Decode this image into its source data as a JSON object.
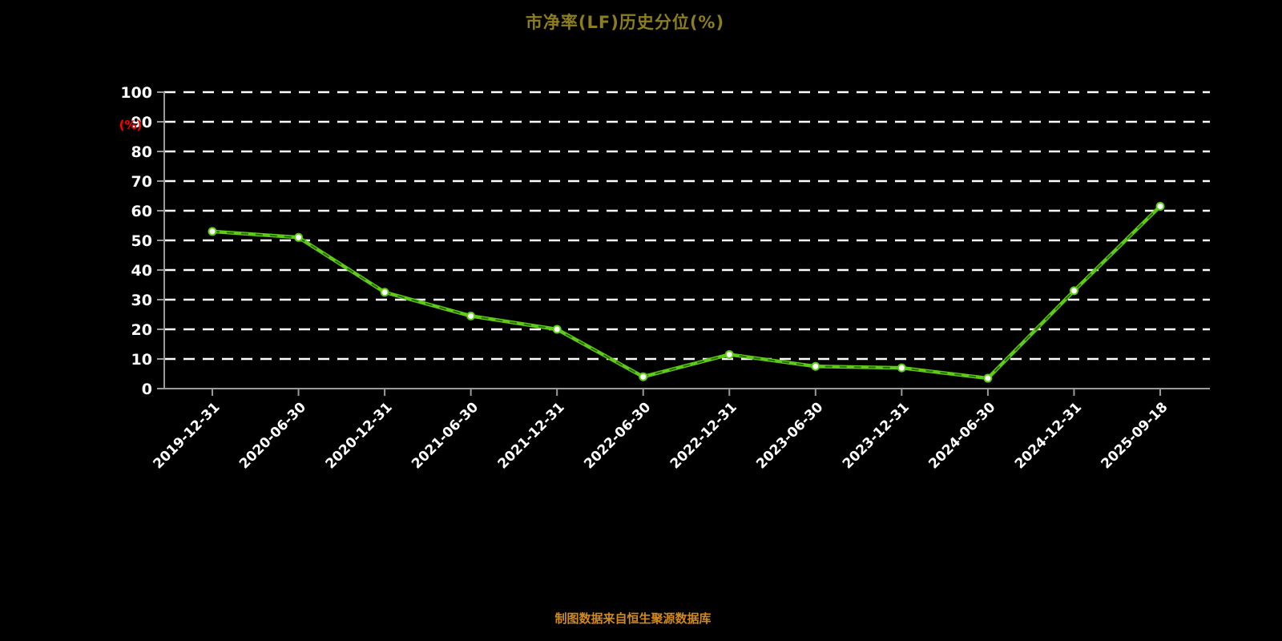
{
  "header": {
    "title": "市净率(LF)历史分位(%)",
    "title_color": "#8c7e1c"
  },
  "footer": {
    "source_note": "制图数据来自恒生聚源数据库",
    "color": "#cf8a1b"
  },
  "chart_data": {
    "type": "line",
    "title": "市净率(LF)历史分位(%)",
    "xlabel": "",
    "ylabel": "(%)",
    "x": [
      "2019-12-31",
      "2020-06-30",
      "2020-12-31",
      "2021-06-30",
      "2021-12-31",
      "2022-06-30",
      "2022-12-31",
      "2023-06-30",
      "2023-12-31",
      "2024-06-30",
      "2024-12-31",
      "2025-09-18"
    ],
    "series": [
      {
        "name": "市净率(LF)历史分位",
        "values": [
          53,
          51,
          32.5,
          24.5,
          20,
          4,
          11.5,
          7.5,
          7,
          3.5,
          33,
          61.5
        ],
        "color": "#5ecb17",
        "overlay_dash_color": "#2a6e00",
        "marker": "circle",
        "marker_fill": "#ffffff"
      }
    ],
    "ylim": [
      0,
      100
    ],
    "yticks": [
      0,
      10,
      20,
      30,
      40,
      50,
      60,
      70,
      80,
      90,
      100
    ],
    "grid": "dashed-horizontal",
    "grid_color": "#ffffff",
    "axis_color": "#9a9a9a",
    "tick_label_color": "#ffffff",
    "ylabel_color": "#ff0000",
    "legend_position": "none"
  }
}
